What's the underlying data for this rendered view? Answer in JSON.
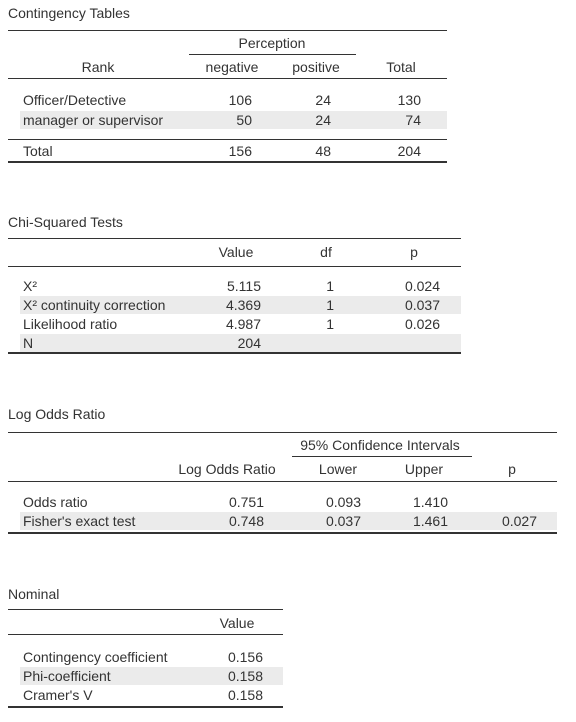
{
  "tables": [
    {
      "title": "Contingency Tables",
      "spanner": "Perception",
      "columns": [
        "Rank",
        "negative",
        "positive",
        "Total"
      ],
      "rows": [
        [
          "Officer/Detective",
          "106",
          "24",
          "130"
        ],
        [
          "manager or supervisor",
          "50",
          "24",
          "74"
        ],
        [
          "Total",
          "156",
          "48",
          "204"
        ]
      ]
    },
    {
      "title": "Chi-Squared Tests",
      "columns": [
        "Value",
        "df",
        "p"
      ],
      "rows": [
        [
          "X²",
          "5.115",
          "1",
          "0.024"
        ],
        [
          "X² continuity correction",
          "4.369",
          "1",
          "0.037"
        ],
        [
          "Likelihood ratio",
          "4.987",
          "1",
          "0.026"
        ],
        [
          "N",
          "204"
        ]
      ]
    },
    {
      "title": "Log Odds Ratio",
      "spanner": "95% Confidence Intervals",
      "columns": [
        "Log Odds Ratio",
        "Lower",
        "Upper",
        "p"
      ],
      "rows": [
        [
          "Odds ratio",
          "0.751",
          "0.093",
          "1.410"
        ],
        [
          "Fisher's exact test",
          "0.748",
          "0.037",
          "1.461",
          "0.027"
        ]
      ]
    },
    {
      "title": "Nominal",
      "columns": [
        "Value"
      ],
      "rows": [
        [
          "Contingency coefficient",
          "0.156"
        ],
        [
          "Phi-coefficient",
          "0.158"
        ],
        [
          "Cramer's V",
          "0.158"
        ]
      ]
    }
  ]
}
